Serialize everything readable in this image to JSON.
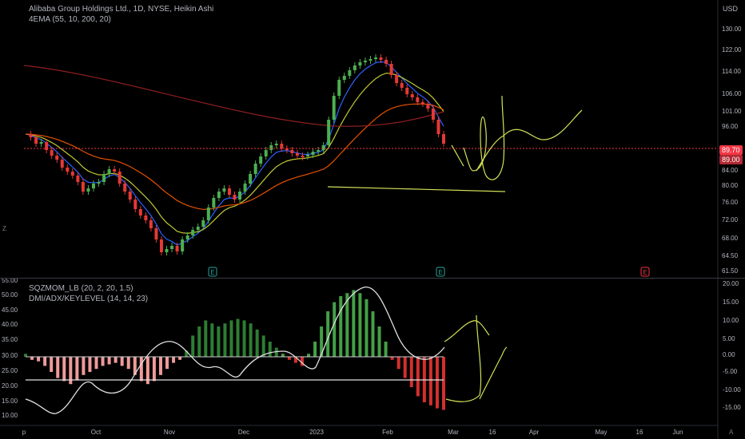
{
  "header": {
    "title": "Alibaba Group Holdings Ltd., 1D, NYSE, Heikin Ashi",
    "indicator_main": "4EMA (55, 10, 200, 20)",
    "indicator_lower_1": "SQZMOM_LB (20, 2, 20, 1.5)",
    "indicator_lower_2": "DMI/ADX/KEYLEVEL (14, 14, 23)"
  },
  "chart_data": [
    {
      "type": "candlestick",
      "currency": "USD",
      "y_ticks": [
        "130.00",
        "122.00",
        "114.00",
        "106.00",
        "101.00",
        "96.00",
        "89.70",
        "89.00",
        "84.00",
        "80.00",
        "76.00",
        "72.00",
        "68.00",
        "64.50",
        "61.50"
      ],
      "last_price": "89.70",
      "prev_close": "89.00",
      "x_ticks": [
        "p",
        "Oct",
        "Nov",
        "Dec",
        "2023",
        "Feb",
        "Mar",
        "16",
        "Apr",
        "May",
        "16",
        "Jun"
      ],
      "earnings_markers": [
        "E",
        "E",
        "E"
      ],
      "series": [
        {
          "name": "EMA 10",
          "color": "#2962ff"
        },
        {
          "name": "EMA 20",
          "color": "#c0ca33"
        },
        {
          "name": "EMA 55",
          "color": "#e65100"
        },
        {
          "name": "EMA 200",
          "color": "#8d1f1f"
        }
      ]
    },
    {
      "type": "bar",
      "left_ticks": [
        "55.00",
        "50.00",
        "45.00",
        "40.00",
        "35.00",
        "30.00",
        "25.00",
        "20.00",
        "15.00",
        "10.00"
      ],
      "right_ticks": [
        "20.00",
        "15.00",
        "10.00",
        "5.00",
        "0.00",
        "-5.00",
        "-10.00",
        "-15.00"
      ],
      "key_level": 23
    }
  ],
  "colors": {
    "up": "#26a69a",
    "up_green": "#2e9e2e",
    "down": "#e53935",
    "annotation": "#d4e157",
    "price_tag": "#f23645"
  },
  "icons": {
    "bottom_left": "Z",
    "bottom_right": "A"
  }
}
